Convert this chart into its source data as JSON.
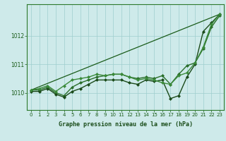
{
  "background_color": "#ceeaea",
  "plot_bg_color": "#ceeaea",
  "grid_color": "#9ecece",
  "title": "Graphe pression niveau de la mer (hPa)",
  "xlim": [
    -0.5,
    23.5
  ],
  "ylim": [
    1009.4,
    1013.1
  ],
  "yticks": [
    1010,
    1011,
    1012
  ],
  "xticks": [
    0,
    1,
    2,
    3,
    4,
    5,
    6,
    7,
    8,
    9,
    10,
    11,
    12,
    13,
    14,
    15,
    16,
    17,
    18,
    19,
    20,
    21,
    22,
    23
  ],
  "series": [
    {
      "x": [
        0,
        23
      ],
      "y": [
        1010.1,
        1012.75
      ],
      "color": "#1a5c1a",
      "lw": 0.9,
      "marker": null,
      "ms": 0
    },
    {
      "x": [
        0,
        1,
        2,
        3,
        4,
        5,
        6,
        7,
        8,
        9,
        10,
        11,
        12,
        13,
        14,
        15,
        16,
        17,
        18,
        19,
        20,
        21,
        22,
        23
      ],
      "y": [
        1010.1,
        1010.1,
        1010.2,
        1010.0,
        1009.9,
        1010.2,
        1010.35,
        1010.45,
        1010.55,
        1010.6,
        1010.65,
        1010.65,
        1010.55,
        1010.5,
        1010.55,
        1010.5,
        1010.6,
        1010.3,
        1010.65,
        1010.95,
        1011.05,
        1011.55,
        1012.3,
        1012.7
      ],
      "color": "#2a6e2a",
      "lw": 1.0,
      "marker": "D",
      "ms": 2.0
    },
    {
      "x": [
        0,
        1,
        2,
        3,
        4,
        5,
        6,
        7,
        8,
        9,
        10,
        11,
        12,
        13,
        14,
        15,
        16,
        17,
        18,
        19,
        20,
        21,
        22,
        23
      ],
      "y": [
        1010.05,
        1010.05,
        1010.15,
        1009.95,
        1009.85,
        1010.05,
        1010.15,
        1010.3,
        1010.45,
        1010.45,
        1010.45,
        1010.45,
        1010.35,
        1010.3,
        1010.45,
        1010.4,
        1010.45,
        1009.8,
        1009.9,
        1010.55,
        1011.0,
        1012.15,
        1012.45,
        1012.75
      ],
      "color": "#1a4a1a",
      "lw": 1.0,
      "marker": "D",
      "ms": 2.0
    },
    {
      "x": [
        0,
        1,
        2,
        3,
        4,
        5,
        6,
        7,
        8,
        9,
        10,
        11,
        12,
        13,
        14,
        15,
        16,
        17,
        18,
        19,
        20,
        21,
        22,
        23
      ],
      "y": [
        1010.1,
        1010.15,
        1010.25,
        1010.05,
        1010.25,
        1010.45,
        1010.5,
        1010.55,
        1010.65,
        1010.6,
        1010.65,
        1010.65,
        1010.55,
        1010.45,
        1010.5,
        1010.45,
        1010.35,
        1010.3,
        1010.6,
        1010.7,
        1011.05,
        1011.6,
        1012.4,
        1012.75
      ],
      "color": "#3a8a3a",
      "lw": 1.0,
      "marker": "D",
      "ms": 2.0
    }
  ]
}
